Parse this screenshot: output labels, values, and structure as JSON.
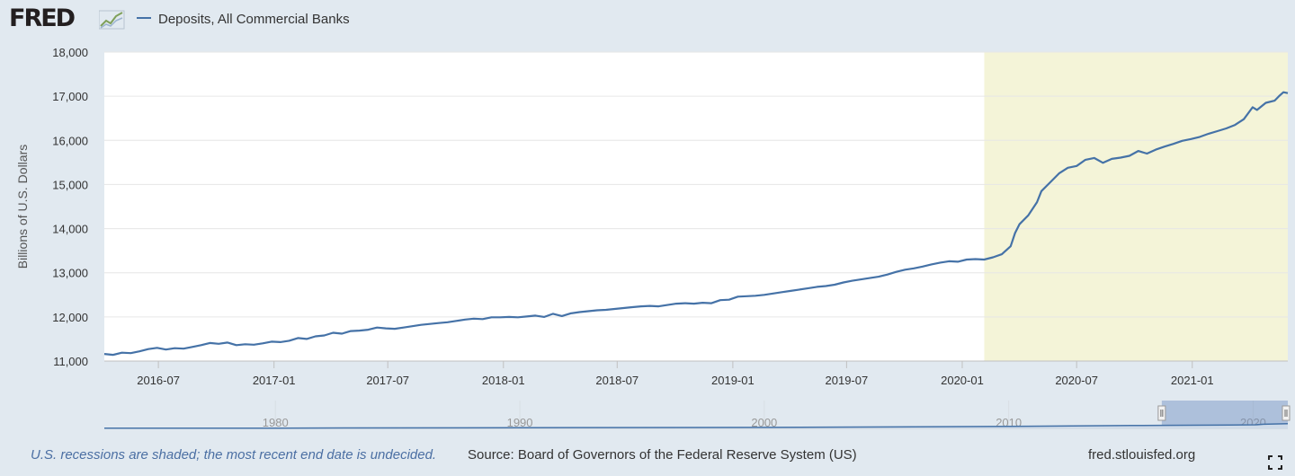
{
  "header": {
    "logo_text": "FRED",
    "logo_icon": "fred-graph-icon",
    "legend_label": "Deposits, All Commercial Banks",
    "series_color": "#4572a7"
  },
  "footer": {
    "recession_note": "U.S. recessions are shaded; the most recent end date is undecided.",
    "source": "Source: Board of Governors of the Federal Reserve System (US)",
    "site": "fred.stlouisfed.org",
    "fullscreen_icon": "fullscreen-icon"
  },
  "colors": {
    "background": "#e1e9f0",
    "plot_background": "#ffffff",
    "recession_shade": "#f4f4d8",
    "navigator_fill": "#6f8fc2"
  },
  "chart_data": {
    "type": "line",
    "ylabel": "Billions of U.S. Dollars",
    "ylim": [
      11000,
      18000
    ],
    "yticks": [
      "11,000",
      "12,000",
      "13,000",
      "14,000",
      "15,000",
      "16,000",
      "17,000",
      "18,000"
    ],
    "xlim": [
      "2016-04-06",
      "2021-06-02"
    ],
    "xticks": [
      "2016-07",
      "2017-01",
      "2017-07",
      "2018-01",
      "2018-07",
      "2019-01",
      "2019-07",
      "2020-01",
      "2020-07",
      "2021-01"
    ],
    "grid": true,
    "recession": {
      "start": "2020-02-05",
      "end": "2021-06-02"
    },
    "series": [
      {
        "name": "Deposits, All Commercial Banks",
        "points": [
          [
            "2016-04-06",
            11160
          ],
          [
            "2016-04-20",
            11140
          ],
          [
            "2016-05-04",
            11190
          ],
          [
            "2016-05-18",
            11180
          ],
          [
            "2016-06-01",
            11220
          ],
          [
            "2016-06-15",
            11270
          ],
          [
            "2016-06-29",
            11300
          ],
          [
            "2016-07-13",
            11260
          ],
          [
            "2016-07-27",
            11290
          ],
          [
            "2016-08-10",
            11280
          ],
          [
            "2016-08-24",
            11320
          ],
          [
            "2016-09-07",
            11360
          ],
          [
            "2016-09-21",
            11410
          ],
          [
            "2016-10-05",
            11390
          ],
          [
            "2016-10-19",
            11420
          ],
          [
            "2016-11-02",
            11360
          ],
          [
            "2016-11-16",
            11380
          ],
          [
            "2016-11-30",
            11370
          ],
          [
            "2016-12-14",
            11400
          ],
          [
            "2016-12-28",
            11440
          ],
          [
            "2017-01-11",
            11430
          ],
          [
            "2017-01-25",
            11460
          ],
          [
            "2017-02-08",
            11520
          ],
          [
            "2017-02-22",
            11500
          ],
          [
            "2017-03-08",
            11560
          ],
          [
            "2017-03-22",
            11580
          ],
          [
            "2017-04-05",
            11640
          ],
          [
            "2017-04-19",
            11620
          ],
          [
            "2017-05-03",
            11680
          ],
          [
            "2017-05-17",
            11690
          ],
          [
            "2017-05-31",
            11710
          ],
          [
            "2017-06-14",
            11760
          ],
          [
            "2017-06-28",
            11740
          ],
          [
            "2017-07-12",
            11730
          ],
          [
            "2017-07-26",
            11760
          ],
          [
            "2017-08-09",
            11790
          ],
          [
            "2017-08-23",
            11820
          ],
          [
            "2017-09-06",
            11840
          ],
          [
            "2017-09-20",
            11860
          ],
          [
            "2017-10-04",
            11880
          ],
          [
            "2017-10-18",
            11910
          ],
          [
            "2017-11-01",
            11940
          ],
          [
            "2017-11-15",
            11960
          ],
          [
            "2017-11-29",
            11950
          ],
          [
            "2017-12-13",
            11990
          ],
          [
            "2017-12-27",
            11990
          ],
          [
            "2018-01-10",
            12000
          ],
          [
            "2018-01-24",
            11990
          ],
          [
            "2018-02-07",
            12010
          ],
          [
            "2018-02-21",
            12030
          ],
          [
            "2018-03-07",
            12000
          ],
          [
            "2018-03-21",
            12070
          ],
          [
            "2018-04-04",
            12020
          ],
          [
            "2018-04-18",
            12080
          ],
          [
            "2018-05-02",
            12110
          ],
          [
            "2018-05-16",
            12130
          ],
          [
            "2018-05-30",
            12150
          ],
          [
            "2018-06-13",
            12160
          ],
          [
            "2018-06-27",
            12180
          ],
          [
            "2018-07-11",
            12200
          ],
          [
            "2018-07-25",
            12220
          ],
          [
            "2018-08-08",
            12240
          ],
          [
            "2018-08-22",
            12250
          ],
          [
            "2018-09-05",
            12240
          ],
          [
            "2018-09-19",
            12270
          ],
          [
            "2018-10-03",
            12300
          ],
          [
            "2018-10-17",
            12310
          ],
          [
            "2018-10-31",
            12300
          ],
          [
            "2018-11-14",
            12320
          ],
          [
            "2018-11-28",
            12310
          ],
          [
            "2018-12-12",
            12380
          ],
          [
            "2018-12-26",
            12390
          ],
          [
            "2019-01-09",
            12460
          ],
          [
            "2019-01-23",
            12470
          ],
          [
            "2019-02-06",
            12480
          ],
          [
            "2019-02-20",
            12500
          ],
          [
            "2019-03-06",
            12530
          ],
          [
            "2019-03-20",
            12560
          ],
          [
            "2019-04-03",
            12590
          ],
          [
            "2019-04-17",
            12620
          ],
          [
            "2019-05-01",
            12650
          ],
          [
            "2019-05-15",
            12680
          ],
          [
            "2019-05-29",
            12700
          ],
          [
            "2019-06-12",
            12730
          ],
          [
            "2019-06-26",
            12780
          ],
          [
            "2019-07-10",
            12820
          ],
          [
            "2019-07-24",
            12850
          ],
          [
            "2019-08-07",
            12880
          ],
          [
            "2019-08-21",
            12910
          ],
          [
            "2019-09-04",
            12960
          ],
          [
            "2019-09-18",
            13020
          ],
          [
            "2019-10-02",
            13070
          ],
          [
            "2019-10-16",
            13100
          ],
          [
            "2019-10-30",
            13140
          ],
          [
            "2019-11-13",
            13190
          ],
          [
            "2019-11-27",
            13230
          ],
          [
            "2019-12-11",
            13260
          ],
          [
            "2019-12-25",
            13250
          ],
          [
            "2020-01-08",
            13300
          ],
          [
            "2020-01-22",
            13310
          ],
          [
            "2020-02-05",
            13300
          ],
          [
            "2020-02-19",
            13350
          ],
          [
            "2020-03-04",
            13420
          ],
          [
            "2020-03-18",
            13600
          ],
          [
            "2020-03-25",
            13900
          ],
          [
            "2020-04-01",
            14100
          ],
          [
            "2020-04-15",
            14300
          ],
          [
            "2020-04-29",
            14600
          ],
          [
            "2020-05-06",
            14850
          ],
          [
            "2020-05-20",
            15050
          ],
          [
            "2020-06-03",
            15250
          ],
          [
            "2020-06-17",
            15380
          ],
          [
            "2020-07-01",
            15420
          ],
          [
            "2020-07-15",
            15560
          ],
          [
            "2020-07-29",
            15600
          ],
          [
            "2020-08-12",
            15490
          ],
          [
            "2020-08-26",
            15580
          ],
          [
            "2020-09-09",
            15610
          ],
          [
            "2020-09-23",
            15650
          ],
          [
            "2020-10-07",
            15760
          ],
          [
            "2020-10-21",
            15700
          ],
          [
            "2020-11-04",
            15790
          ],
          [
            "2020-11-18",
            15860
          ],
          [
            "2020-12-02",
            15920
          ],
          [
            "2020-12-16",
            15990
          ],
          [
            "2020-12-30",
            16030
          ],
          [
            "2021-01-13",
            16080
          ],
          [
            "2021-01-27",
            16150
          ],
          [
            "2021-02-10",
            16210
          ],
          [
            "2021-02-24",
            16270
          ],
          [
            "2021-03-10",
            16350
          ],
          [
            "2021-03-24",
            16480
          ],
          [
            "2021-04-07",
            16750
          ],
          [
            "2021-04-14",
            16690
          ],
          [
            "2021-04-28",
            16850
          ],
          [
            "2021-05-12",
            16900
          ],
          [
            "2021-05-19",
            17000
          ],
          [
            "2021-05-26",
            17090
          ],
          [
            "2021-06-02",
            17070
          ]
        ]
      }
    ],
    "navigator": {
      "xlim": [
        "1973-01-01",
        "2021-06-02"
      ],
      "ticks": [
        "1980",
        "1990",
        "2000",
        "2010",
        "2020"
      ],
      "selected_range": [
        "2016-04-06",
        "2021-06-02"
      ],
      "points": [
        [
          "1973-01-01",
          600
        ],
        [
          "1980-01-01",
          1100
        ],
        [
          "1990-01-01",
          2600
        ],
        [
          "2000-01-01",
          3700
        ],
        [
          "2005-01-01",
          5300
        ],
        [
          "2010-01-01",
          7400
        ],
        [
          "2015-01-01",
          10500
        ],
        [
          "2016-04-06",
          11160
        ],
        [
          "2019-01-01",
          12460
        ],
        [
          "2020-02-05",
          13300
        ],
        [
          "2020-06-01",
          15300
        ],
        [
          "2021-06-02",
          17070
        ]
      ]
    }
  }
}
